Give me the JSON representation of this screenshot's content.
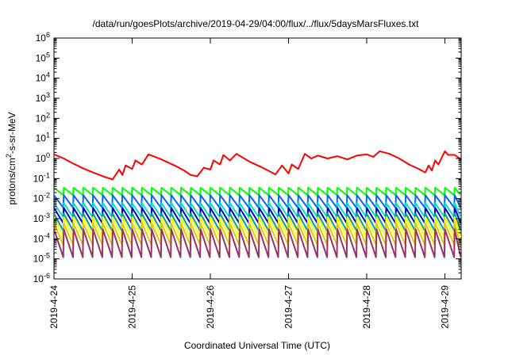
{
  "chart_data": {
    "type": "line",
    "title": "/data/run/goesPlots/archive/2019-04-29/04:00/flux/../flux/5daysMarsFluxes.txt",
    "xlabel": "Coordinated Universal Time (UTC)",
    "ylabel": {
      "prefix": "protons/cm",
      "sup": "2",
      "suffix": "-s-sr-MeV"
    },
    "x_ticks": [
      "2019-4-24",
      "2019-4-25",
      "2019-4-26",
      "2019-4-27",
      "2019-4-28",
      "2019-4-29"
    ],
    "xlim": [
      "2019-04-24T00:00",
      "2019-04-29T05:00"
    ],
    "y_scale": "log",
    "ylim": [
      1e-06,
      1000000.0
    ],
    "y_ticks": [
      {
        "base": "10",
        "exp": "-6"
      },
      {
        "base": "10",
        "exp": "-5"
      },
      {
        "base": "10",
        "exp": "-4"
      },
      {
        "base": "10",
        "exp": "-3"
      },
      {
        "base": "10",
        "exp": "-2"
      },
      {
        "base": "10",
        "exp": "-1"
      },
      {
        "base": "10",
        "exp": "0"
      },
      {
        "base": "10",
        "exp": "1"
      },
      {
        "base": "10",
        "exp": "2"
      },
      {
        "base": "10",
        "exp": "3"
      },
      {
        "base": "10",
        "exp": "4"
      },
      {
        "base": "10",
        "exp": "5"
      },
      {
        "base": "10",
        "exp": "6"
      }
    ],
    "grid": false,
    "colors": {
      "red": "#ff0000",
      "green": "#00ff00",
      "blue": "#0066ff",
      "cyan": "#00e0c8",
      "navy": "#0000cc",
      "teal": "#00a0a0",
      "yellow": "#ffff00",
      "gold": "#ddcc00",
      "purple": "#993366"
    },
    "series": [
      {
        "color": "#ff0000",
        "points": [
          [
            "2019-04-24T00:00",
            1.6
          ],
          [
            "2019-04-24T03:00",
            1.0
          ],
          [
            "2019-04-24T06:00",
            0.55
          ],
          [
            "2019-04-24T09:00",
            0.32
          ],
          [
            "2019-04-24T12:00",
            0.2
          ],
          [
            "2019-04-24T15:00",
            0.13
          ],
          [
            "2019-04-24T18:00",
            0.09
          ],
          [
            "2019-04-24T20:00",
            0.28
          ],
          [
            "2019-04-24T21:00",
            0.15
          ],
          [
            "2019-04-24T22:00",
            0.45
          ],
          [
            "2019-04-25T00:00",
            0.3
          ],
          [
            "2019-04-25T01:00",
            0.8
          ],
          [
            "2019-04-25T03:00",
            0.5
          ],
          [
            "2019-04-25T05:00",
            1.6
          ],
          [
            "2019-04-25T09:00",
            0.9
          ],
          [
            "2019-04-25T13:00",
            0.45
          ],
          [
            "2019-04-25T16:00",
            0.25
          ],
          [
            "2019-04-25T18:00",
            0.15
          ],
          [
            "2019-04-25T20:00",
            0.13
          ],
          [
            "2019-04-25T22:00",
            0.35
          ],
          [
            "2019-04-26T00:00",
            0.28
          ],
          [
            "2019-04-26T01:00",
            0.8
          ],
          [
            "2019-04-26T03:00",
            0.5
          ],
          [
            "2019-04-26T04:00",
            1.5
          ],
          [
            "2019-04-26T06:00",
            0.8
          ],
          [
            "2019-04-26T08:00",
            1.7
          ],
          [
            "2019-04-26T12:00",
            0.7
          ],
          [
            "2019-04-26T16:00",
            0.35
          ],
          [
            "2019-04-26T20:00",
            0.16
          ],
          [
            "2019-04-26T22:00",
            0.45
          ],
          [
            "2019-04-27T00:00",
            0.18
          ],
          [
            "2019-04-27T01:00",
            0.5
          ],
          [
            "2019-04-27T03:00",
            0.3
          ],
          [
            "2019-04-27T05:00",
            1.7
          ],
          [
            "2019-04-27T07:00",
            1.0
          ],
          [
            "2019-04-27T09:00",
            1.4
          ],
          [
            "2019-04-27T12:00",
            1.0
          ],
          [
            "2019-04-27T15:00",
            1.3
          ],
          [
            "2019-04-27T18:00",
            0.9
          ],
          [
            "2019-04-27T21:00",
            1.4
          ],
          [
            "2019-04-28T00:00",
            1.6
          ],
          [
            "2019-04-28T02:00",
            1.2
          ],
          [
            "2019-04-28T04:00",
            2.3
          ],
          [
            "2019-04-28T07:00",
            1.7
          ],
          [
            "2019-04-28T10:00",
            1.0
          ],
          [
            "2019-04-28T13:00",
            0.5
          ],
          [
            "2019-04-28T16:00",
            0.3
          ],
          [
            "2019-04-28T18:00",
            0.2
          ],
          [
            "2019-04-28T19:00",
            0.45
          ],
          [
            "2019-04-28T20:00",
            0.25
          ],
          [
            "2019-04-28T21:00",
            0.8
          ],
          [
            "2019-04-28T22:00",
            0.5
          ],
          [
            "2019-04-29T00:00",
            2.3
          ],
          [
            "2019-04-29T01:00",
            1.5
          ],
          [
            "2019-04-29T03:00",
            1.5
          ],
          [
            "2019-04-29T05:00",
            0.9
          ]
        ]
      },
      {
        "color": "#00ff00",
        "sawtooth": true,
        "period_hours": 3,
        "peak": 0.035,
        "trough": 0.015
      },
      {
        "color": "#0066ff",
        "sawtooth": true,
        "period_hours": 3,
        "peak": 0.015,
        "trough": 0.0035
      },
      {
        "color": "#00e0c8",
        "sawtooth": true,
        "period_hours": 3,
        "peak": 0.006,
        "trough": 0.0012
      },
      {
        "color": "#0000cc",
        "sawtooth": true,
        "period_hours": 3,
        "peak": 0.0035,
        "trough": 0.0006
      },
      {
        "color": "#00a0a0",
        "sawtooth": true,
        "period_hours": 3,
        "peak": 0.0018,
        "trough": 0.00025
      },
      {
        "color": "#ffff00",
        "sawtooth": true,
        "period_hours": 3,
        "peak": 0.0012,
        "trough": 0.00012
      },
      {
        "color": "#ddcc00",
        "sawtooth": true,
        "period_hours": 3,
        "peak": 0.0006,
        "trough": 5e-05
      },
      {
        "color": "#993366",
        "sawtooth": true,
        "period_hours": 3,
        "peak": 0.0003,
        "trough": 1.2e-05
      }
    ]
  }
}
